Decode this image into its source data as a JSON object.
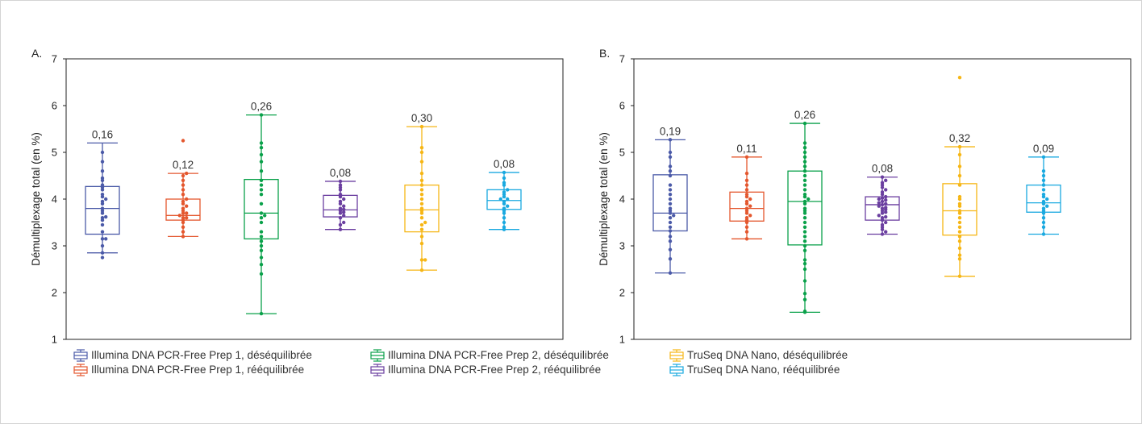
{
  "chart_data": [
    {
      "type": "box",
      "panel_label": "A.",
      "ylabel": "Démultiplexage total (en %)",
      "ylim": [
        1,
        7
      ],
      "yticks": [
        1,
        2,
        3,
        4,
        5,
        6,
        7
      ],
      "grid": false,
      "series": [
        {
          "legend_index": 0,
          "min": 2.85,
          "q1": 3.25,
          "median": 3.8,
          "q3": 4.27,
          "max": 5.2,
          "label": "0,16",
          "points": [
            2.75,
            2.85,
            3.0,
            3.15,
            3.15,
            3.3,
            3.45,
            3.55,
            3.6,
            3.62,
            3.7,
            3.75,
            3.8,
            3.9,
            3.95,
            4.0,
            4.05,
            4.1,
            4.2,
            4.25,
            4.3,
            4.4,
            4.45,
            4.6,
            4.8,
            5.0
          ]
        },
        {
          "legend_index": 1,
          "min": 3.2,
          "q1": 3.55,
          "median": 3.65,
          "q3": 4.0,
          "max": 4.55,
          "label": "0,12",
          "points": [
            3.2,
            3.3,
            3.4,
            3.5,
            3.55,
            3.6,
            3.6,
            3.65,
            3.7,
            3.7,
            3.75,
            3.8,
            3.85,
            3.9,
            3.95,
            4.0,
            4.1,
            4.2,
            4.3,
            4.4,
            4.5,
            4.55,
            5.25
          ]
        },
        {
          "legend_index": 2,
          "min": 1.55,
          "q1": 3.15,
          "median": 3.7,
          "q3": 4.42,
          "max": 5.8,
          "label": "0,26",
          "points": [
            1.55,
            2.4,
            2.6,
            2.75,
            2.9,
            3.0,
            3.1,
            3.2,
            3.3,
            3.5,
            3.6,
            3.65,
            3.7,
            3.9,
            4.1,
            4.2,
            4.3,
            4.4,
            4.6,
            4.8,
            4.95,
            5.1,
            5.2,
            5.8
          ]
        },
        {
          "legend_index": 3,
          "min": 3.35,
          "q1": 3.62,
          "median": 3.77,
          "q3": 4.08,
          "max": 4.38,
          "label": "0,08",
          "points": [
            3.35,
            3.45,
            3.5,
            3.6,
            3.65,
            3.7,
            3.72,
            3.75,
            3.78,
            3.8,
            3.85,
            3.9,
            3.95,
            4.0,
            4.05,
            4.1,
            4.2,
            4.25,
            4.3,
            4.38
          ]
        },
        {
          "legend_index": 4,
          "min": 2.48,
          "q1": 3.3,
          "median": 3.77,
          "q3": 4.3,
          "max": 5.55,
          "label": "0,30",
          "points": [
            2.48,
            2.7,
            2.7,
            3.05,
            3.2,
            3.35,
            3.45,
            3.5,
            3.6,
            3.7,
            3.75,
            3.8,
            3.9,
            4.0,
            4.1,
            4.2,
            4.3,
            4.4,
            4.55,
            4.8,
            5.0,
            5.1,
            5.55
          ]
        },
        {
          "legend_index": 5,
          "min": 3.35,
          "q1": 3.78,
          "median": 3.97,
          "q3": 4.2,
          "max": 4.57,
          "label": "0,08",
          "points": [
            3.35,
            3.4,
            3.5,
            3.6,
            3.7,
            3.75,
            3.8,
            3.85,
            3.9,
            3.95,
            4.0,
            4.0,
            4.05,
            4.1,
            4.15,
            4.2,
            4.3,
            4.35,
            4.45,
            4.57
          ]
        }
      ]
    },
    {
      "type": "box",
      "panel_label": "B.",
      "ylabel": "Démultiplexage total (en %)",
      "ylim": [
        1,
        7
      ],
      "yticks": [
        1,
        2,
        3,
        4,
        5,
        6,
        7
      ],
      "grid": false,
      "series": [
        {
          "legend_index": 0,
          "min": 2.42,
          "q1": 3.32,
          "median": 3.7,
          "q3": 4.52,
          "max": 5.27,
          "label": "0,19",
          "points": [
            2.42,
            2.72,
            2.92,
            3.1,
            3.2,
            3.32,
            3.4,
            3.5,
            3.6,
            3.65,
            3.7,
            3.75,
            3.8,
            3.9,
            4.0,
            4.1,
            4.2,
            4.3,
            4.5,
            4.6,
            4.7,
            4.9,
            5.0,
            5.27
          ]
        },
        {
          "legend_index": 1,
          "min": 3.15,
          "q1": 3.53,
          "median": 3.8,
          "q3": 4.15,
          "max": 4.9,
          "label": "0,11",
          "points": [
            3.15,
            3.3,
            3.4,
            3.5,
            3.55,
            3.6,
            3.65,
            3.7,
            3.75,
            3.8,
            3.85,
            3.9,
            3.95,
            4.0,
            4.05,
            4.1,
            4.2,
            4.3,
            4.4,
            4.55,
            4.9
          ]
        },
        {
          "legend_index": 2,
          "min": 1.58,
          "q1": 3.02,
          "median": 3.95,
          "q3": 4.6,
          "max": 5.62,
          "label": "0,26",
          "points": [
            1.58,
            1.6,
            1.85,
            1.98,
            2.25,
            2.5,
            2.62,
            2.7,
            2.9,
            3.0,
            3.1,
            3.2,
            3.3,
            3.4,
            3.5,
            3.6,
            3.7,
            3.75,
            3.8,
            3.9,
            3.95,
            4.0,
            4.05,
            4.1,
            4.2,
            4.3,
            4.4,
            4.5,
            4.6,
            4.7,
            4.8,
            4.9,
            5.0,
            5.1,
            5.2,
            5.62
          ]
        },
        {
          "legend_index": 3,
          "min": 3.25,
          "q1": 3.55,
          "median": 3.88,
          "q3": 4.05,
          "max": 4.47,
          "label": "0,08",
          "points": [
            3.25,
            3.3,
            3.35,
            3.4,
            3.45,
            3.5,
            3.55,
            3.6,
            3.62,
            3.65,
            3.7,
            3.72,
            3.75,
            3.78,
            3.8,
            3.82,
            3.85,
            3.88,
            3.9,
            3.92,
            3.95,
            3.98,
            4.0,
            4.02,
            4.05,
            4.1,
            4.15,
            4.2,
            4.25,
            4.3,
            4.35,
            4.4,
            4.47
          ]
        },
        {
          "legend_index": 4,
          "min": 2.35,
          "q1": 3.23,
          "median": 3.75,
          "q3": 4.33,
          "max": 5.12,
          "label": "0,32",
          "points": [
            2.35,
            2.72,
            2.8,
            2.95,
            3.1,
            3.2,
            3.3,
            3.4,
            3.5,
            3.6,
            3.7,
            3.75,
            3.85,
            3.9,
            4.0,
            4.05,
            4.3,
            4.5,
            4.7,
            4.95,
            5.12,
            6.6
          ]
        },
        {
          "legend_index": 5,
          "min": 3.25,
          "q1": 3.72,
          "median": 3.92,
          "q3": 4.3,
          "max": 4.9,
          "label": "0,09",
          "points": [
            3.25,
            3.4,
            3.5,
            3.6,
            3.7,
            3.75,
            3.8,
            3.85,
            3.9,
            3.95,
            4.0,
            4.05,
            4.1,
            4.2,
            4.3,
            4.4,
            4.5,
            4.6,
            4.9
          ]
        }
      ]
    }
  ],
  "legend": {
    "placement": "bottom",
    "items": [
      {
        "label": "Illumina DNA PCR-Free Prep 1, déséquilibrée",
        "color": "#4b5aa8"
      },
      {
        "label": "Illumina DNA PCR-Free Prep 1, rééquilibrée",
        "color": "#e4572e"
      },
      {
        "label": "Illumina DNA PCR-Free Prep 2, déséquilibrée",
        "color": "#0aa14a"
      },
      {
        "label": "Illumina DNA PCR-Free Prep 2, rééquilibrée",
        "color": "#6b3fa0"
      },
      {
        "label": "TruSeq DNA Nano, déséquilibrée",
        "color": "#f6b615"
      },
      {
        "label": "TruSeq DNA Nano, rééquilibrée",
        "color": "#1aa9e0"
      }
    ]
  }
}
